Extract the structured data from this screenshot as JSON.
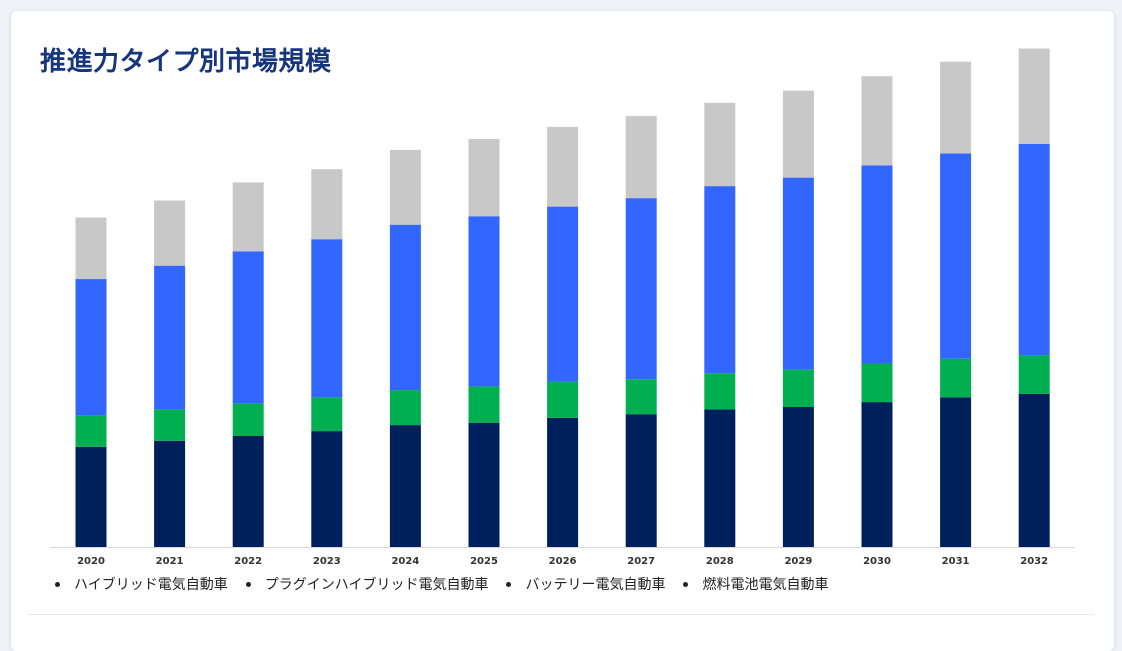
{
  "title": "推進力タイプ別市場規模",
  "colors": {
    "hybrid": "#00205b",
    "plugin_hybrid": "#00b050",
    "battery": "#3366ff",
    "fuel_cell": "#c8c8c8",
    "title": "#16357a"
  },
  "legend": [
    {
      "label": "ハイブリッド電気自動車"
    },
    {
      "label": "プラグインハイブリッド電気自動車"
    },
    {
      "label": "バッテリー電気自動車"
    },
    {
      "label": "燃料電池電気自動車"
    }
  ],
  "chart_data": {
    "type": "bar",
    "stacked": true,
    "categories": [
      "2020",
      "2021",
      "2022",
      "2023",
      "2024",
      "2025",
      "2026",
      "2027",
      "2028",
      "2029",
      "2030",
      "2031",
      "2032"
    ],
    "series": [
      {
        "name": "ハイブリッド電気自動車",
        "color": "#00205b",
        "values": [
          83,
          88,
          92,
          96,
          101,
          103,
          107,
          110,
          114,
          116,
          120,
          124,
          127
        ]
      },
      {
        "name": "プラグインハイブリッド電気自動車",
        "color": "#00b050",
        "values": [
          26,
          26,
          27,
          28,
          29,
          30,
          30,
          29,
          30,
          31,
          32,
          32,
          32
        ]
      },
      {
        "name": "バッテリー電気自動車",
        "color": "#3366ff",
        "values": [
          113,
          119,
          126,
          131,
          137,
          141,
          145,
          150,
          155,
          159,
          164,
          170,
          175
        ]
      },
      {
        "name": "燃料電池電気自動車",
        "color": "#c8c8c8",
        "values": [
          51,
          54,
          57,
          58,
          62,
          64,
          66,
          68,
          69,
          72,
          74,
          76,
          79
        ]
      }
    ],
    "ylim": [
      0,
      420
    ],
    "grid": false,
    "legend_position": "bottom-left",
    "xlabel": "",
    "ylabel": ""
  }
}
